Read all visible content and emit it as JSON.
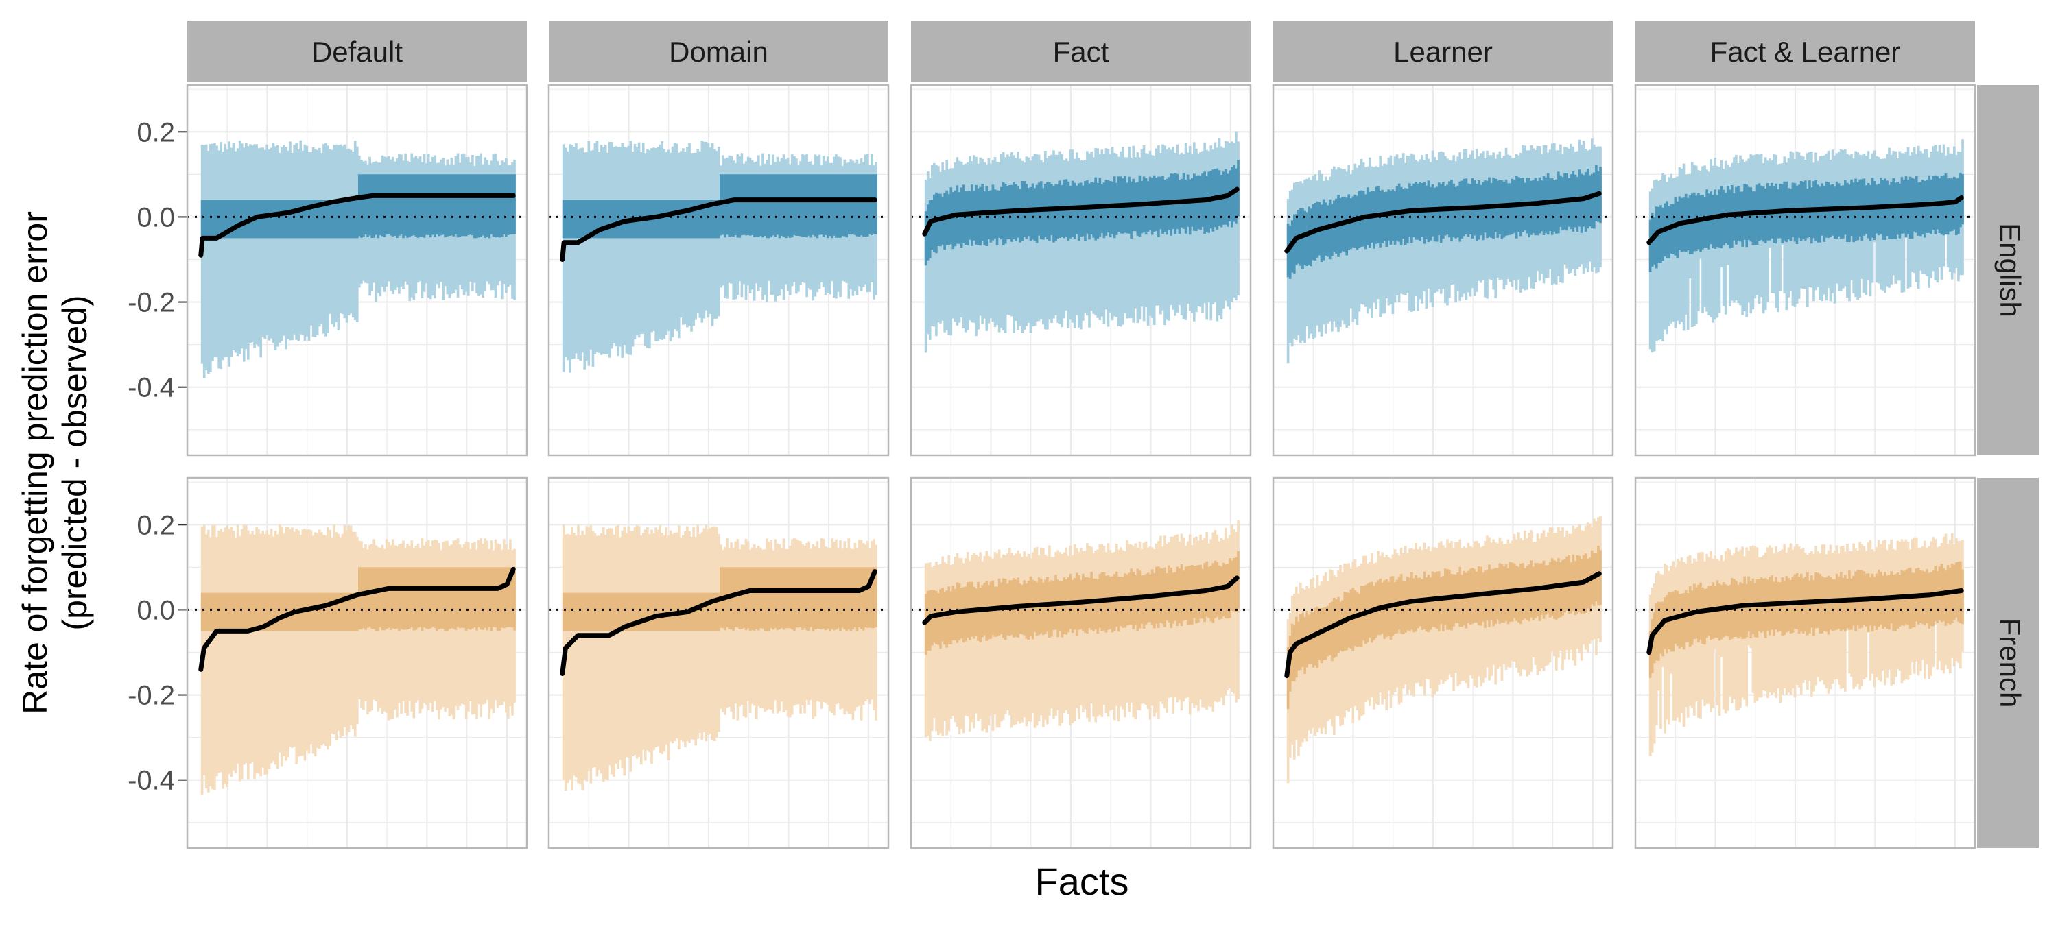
{
  "chart_data": {
    "type": "line",
    "title": "",
    "xlabel": "Facts",
    "ylabel_line1": "Rate of forgetting prediction error",
    "ylabel_line2": "(predicted - observed)",
    "ylim": [
      -0.56,
      0.31
    ],
    "yticks": [
      0.2,
      0.0,
      -0.2,
      -0.4
    ],
    "ytick_labels": [
      "0.2",
      "0.0",
      "-0.2",
      "-0.4"
    ],
    "reference_line": 0,
    "grid": true,
    "legend": "none",
    "columns": [
      "Default",
      "Domain",
      "Fact",
      "Learner",
      "Fact & Learner"
    ],
    "rows": [
      "English",
      "French"
    ],
    "colors": {
      "English": {
        "outer": "#acd2e2",
        "inner": "#4b96b9"
      },
      "French": {
        "outer": "#f5dcbd",
        "inner": "#e7ba82"
      },
      "line": "#000000",
      "strip": "#b3b3b3",
      "panel_border": "#b8b8b8",
      "grid": "#ebebeb"
    },
    "panels": {
      "English": {
        "Default": {
          "median": [
            [
              0,
              -0.09
            ],
            [
              0.005,
              -0.05
            ],
            [
              0.05,
              -0.05
            ],
            [
              0.12,
              -0.02
            ],
            [
              0.18,
              0.0
            ],
            [
              0.28,
              0.01
            ],
            [
              0.36,
              0.025
            ],
            [
              0.42,
              0.035
            ],
            [
              0.5,
              0.045
            ],
            [
              0.55,
              0.05
            ],
            [
              1,
              0.05
            ]
          ]
        },
        "Domain": {
          "median": [
            [
              0,
              -0.1
            ],
            [
              0.005,
              -0.06
            ],
            [
              0.05,
              -0.06
            ],
            [
              0.12,
              -0.03
            ],
            [
              0.2,
              -0.01
            ],
            [
              0.3,
              0.0
            ],
            [
              0.4,
              0.015
            ],
            [
              0.48,
              0.03
            ],
            [
              0.55,
              0.04
            ],
            [
              1,
              0.04
            ]
          ]
        },
        "Fact": {
          "median": [
            [
              0,
              -0.04
            ],
            [
              0.02,
              -0.01
            ],
            [
              0.1,
              0.005
            ],
            [
              0.3,
              0.015
            ],
            [
              0.5,
              0.022
            ],
            [
              0.7,
              0.03
            ],
            [
              0.9,
              0.04
            ],
            [
              0.97,
              0.05
            ],
            [
              1,
              0.065
            ]
          ]
        },
        "Learner": {
          "median": [
            [
              0,
              -0.08
            ],
            [
              0.03,
              -0.05
            ],
            [
              0.1,
              -0.03
            ],
            [
              0.25,
              0.0
            ],
            [
              0.4,
              0.015
            ],
            [
              0.6,
              0.022
            ],
            [
              0.8,
              0.032
            ],
            [
              0.95,
              0.043
            ],
            [
              1,
              0.055
            ]
          ]
        },
        "Fact & Learner": {
          "median": [
            [
              0,
              -0.06
            ],
            [
              0.03,
              -0.035
            ],
            [
              0.1,
              -0.015
            ],
            [
              0.25,
              0.005
            ],
            [
              0.45,
              0.015
            ],
            [
              0.7,
              0.022
            ],
            [
              0.9,
              0.03
            ],
            [
              0.98,
              0.035
            ],
            [
              1,
              0.045
            ]
          ]
        }
      },
      "French": {
        "Default": {
          "median": [
            [
              0,
              -0.14
            ],
            [
              0.01,
              -0.09
            ],
            [
              0.05,
              -0.05
            ],
            [
              0.15,
              -0.05
            ],
            [
              0.2,
              -0.04
            ],
            [
              0.25,
              -0.02
            ],
            [
              0.3,
              -0.005
            ],
            [
              0.4,
              0.01
            ],
            [
              0.5,
              0.035
            ],
            [
              0.6,
              0.05
            ],
            [
              0.95,
              0.05
            ],
            [
              0.98,
              0.06
            ],
            [
              1,
              0.095
            ]
          ]
        },
        "Domain": {
          "median": [
            [
              0,
              -0.15
            ],
            [
              0.01,
              -0.09
            ],
            [
              0.05,
              -0.06
            ],
            [
              0.15,
              -0.06
            ],
            [
              0.2,
              -0.04
            ],
            [
              0.3,
              -0.015
            ],
            [
              0.4,
              -0.005
            ],
            [
              0.48,
              0.02
            ],
            [
              0.55,
              0.035
            ],
            [
              0.6,
              0.045
            ],
            [
              0.95,
              0.045
            ],
            [
              0.98,
              0.055
            ],
            [
              1,
              0.09
            ]
          ]
        },
        "Fact": {
          "median": [
            [
              0,
              -0.03
            ],
            [
              0.02,
              -0.015
            ],
            [
              0.1,
              -0.005
            ],
            [
              0.3,
              0.008
            ],
            [
              0.5,
              0.018
            ],
            [
              0.7,
              0.03
            ],
            [
              0.9,
              0.045
            ],
            [
              0.97,
              0.055
            ],
            [
              1,
              0.075
            ]
          ]
        },
        "Learner": {
          "median": [
            [
              0,
              -0.155
            ],
            [
              0.01,
              -0.1
            ],
            [
              0.03,
              -0.08
            ],
            [
              0.1,
              -0.055
            ],
            [
              0.2,
              -0.02
            ],
            [
              0.3,
              0.005
            ],
            [
              0.4,
              0.02
            ],
            [
              0.6,
              0.035
            ],
            [
              0.8,
              0.05
            ],
            [
              0.95,
              0.065
            ],
            [
              1,
              0.085
            ]
          ]
        },
        "Fact & Learner": {
          "median": [
            [
              0,
              -0.1
            ],
            [
              0.01,
              -0.06
            ],
            [
              0.05,
              -0.025
            ],
            [
              0.15,
              -0.005
            ],
            [
              0.3,
              0.01
            ],
            [
              0.5,
              0.018
            ],
            [
              0.7,
              0.025
            ],
            [
              0.9,
              0.035
            ],
            [
              1,
              0.045
            ]
          ]
        }
      }
    }
  }
}
